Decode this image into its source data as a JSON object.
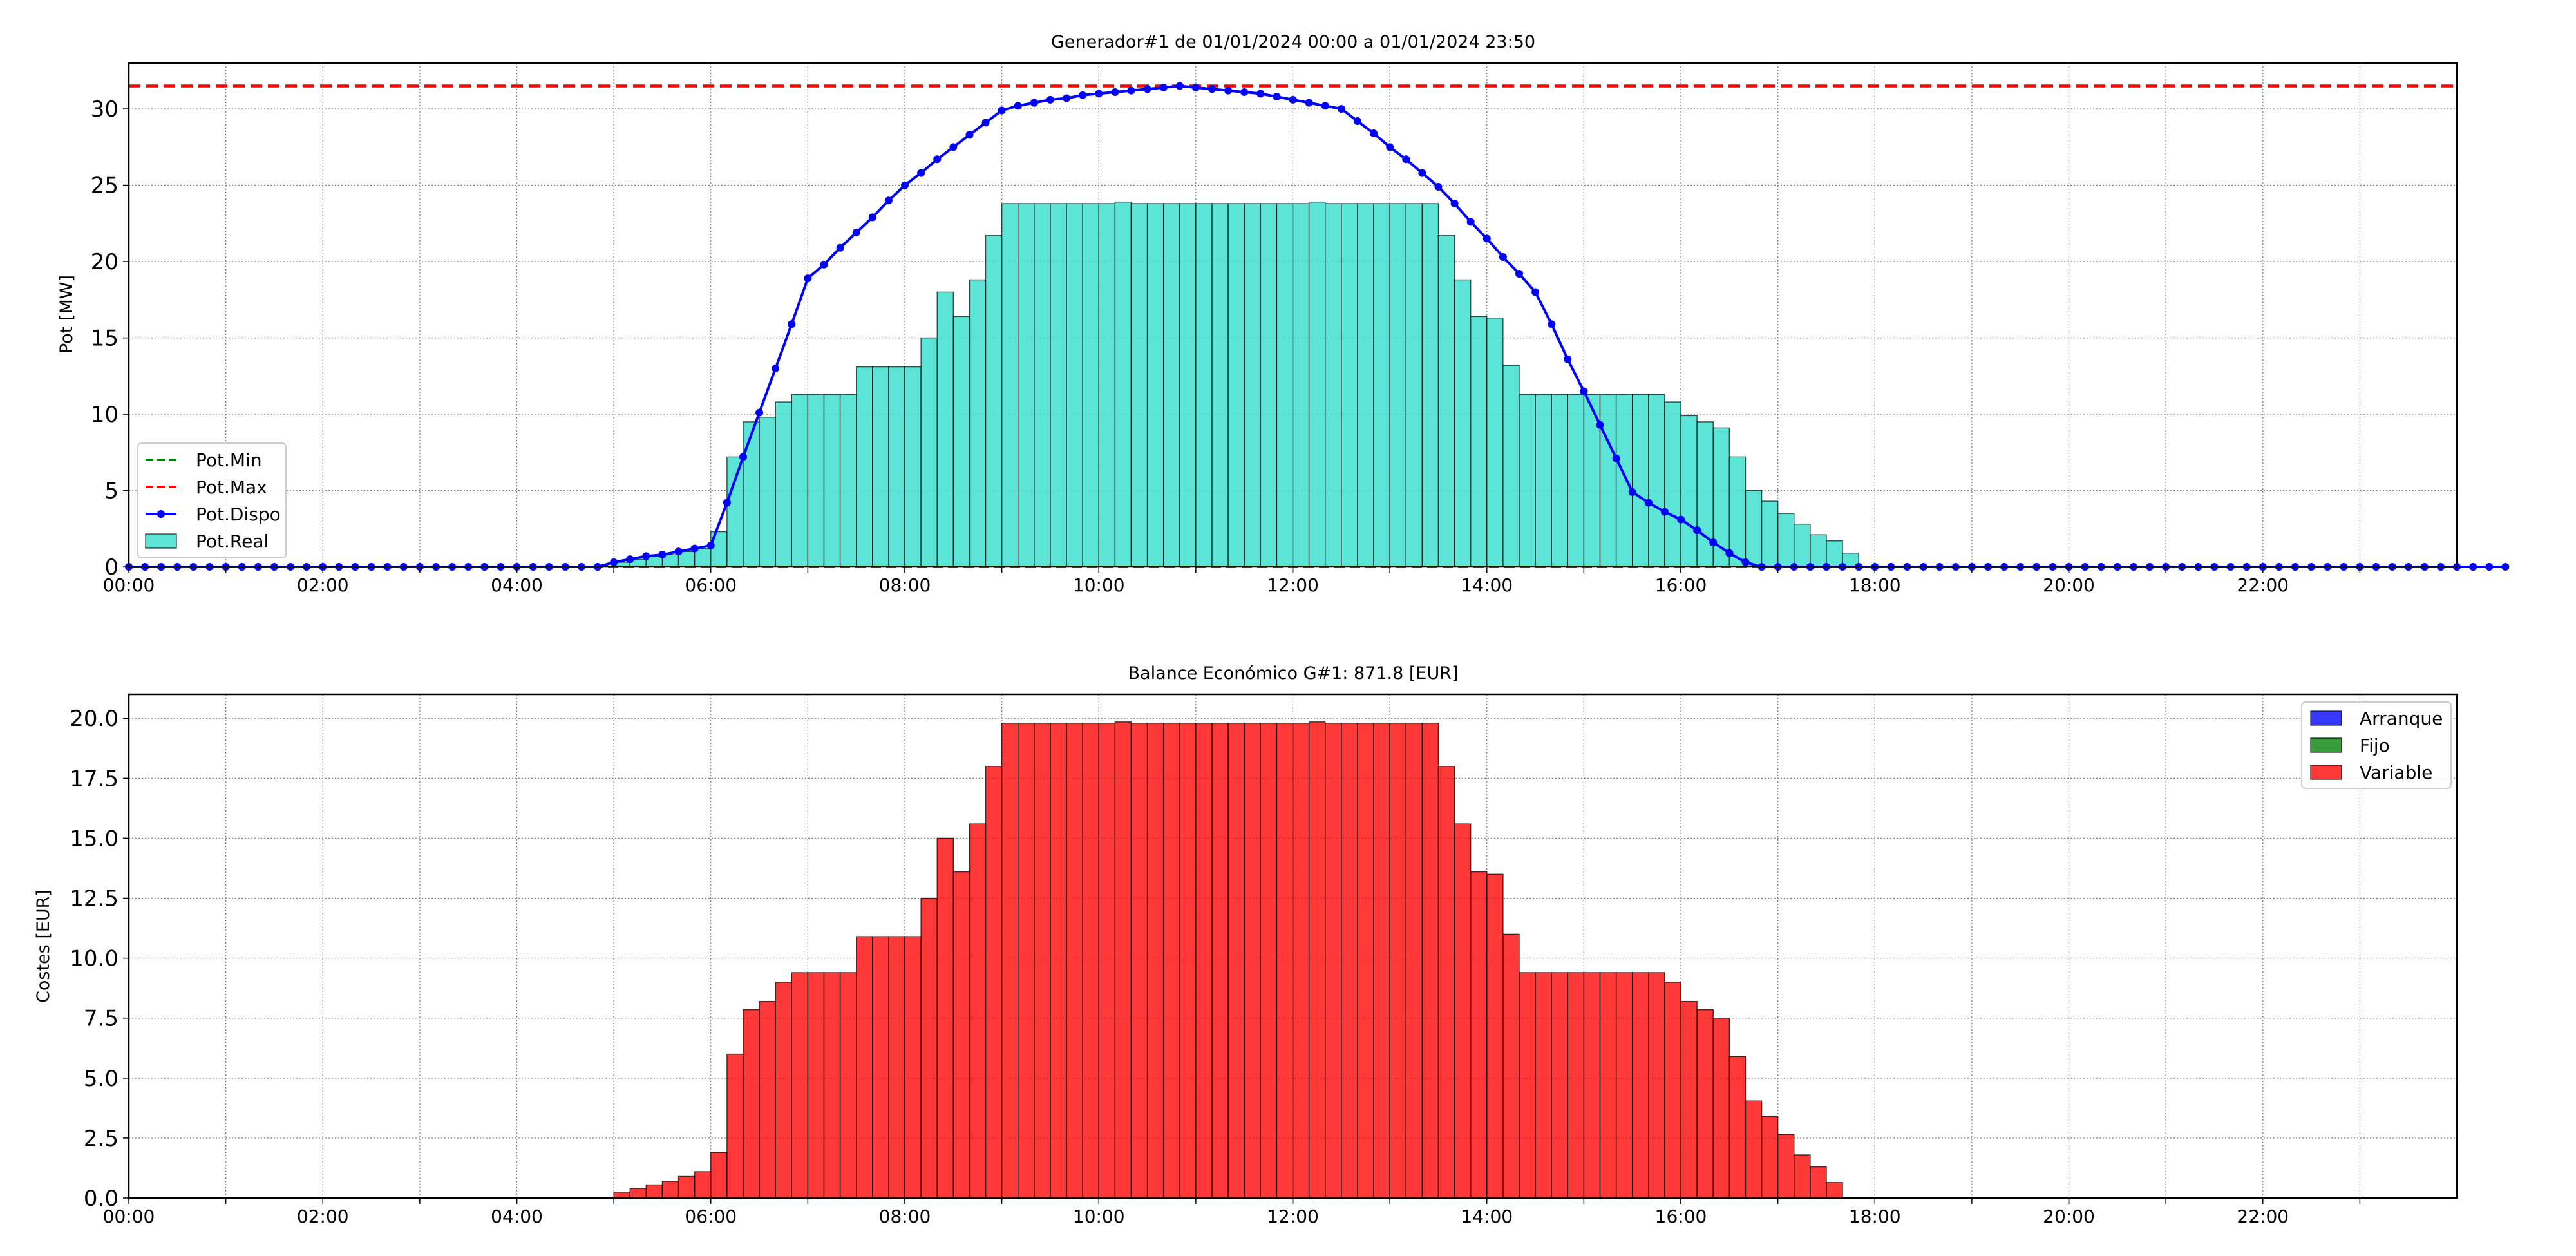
{
  "colors": {
    "pot_min": "#008000",
    "pot_max": "#ff0000",
    "pot_dispo": "#0000ff",
    "pot_real_fill": "#40e0d0",
    "arranque": "#0000ff",
    "fijo": "#008000",
    "variable": "#ff0000",
    "edge": "#000000",
    "grid": "#808080"
  },
  "chart_data": [
    {
      "type": "bar",
      "title": "Generador#1 de 01/01/2024 00:00 a 01/01/2024 23:50",
      "xlabel": "",
      "ylabel": "Pot [MW]",
      "xlim": [
        0,
        24
      ],
      "ylim": [
        0,
        33
      ],
      "x_ticks": [
        "00:00",
        "02:00",
        "04:00",
        "06:00",
        "08:00",
        "10:00",
        "12:00",
        "14:00",
        "16:00",
        "18:00",
        "20:00",
        "22:00"
      ],
      "y_ticks": [
        "0",
        "5",
        "10",
        "15",
        "20",
        "25",
        "30"
      ],
      "grid": true,
      "legend_position": "lower-left",
      "interval_hours": 0.16667,
      "series": [
        {
          "name": "Pot.Min",
          "type": "hline",
          "style": "dashed",
          "value": 0
        },
        {
          "name": "Pot.Max",
          "type": "hline",
          "style": "dashed",
          "value": 31.5
        },
        {
          "name": "Pot.Dispo",
          "type": "line",
          "marker": "circle",
          "values": [
            0,
            0,
            0,
            0,
            0,
            0,
            0,
            0,
            0,
            0,
            0,
            0,
            0,
            0,
            0,
            0,
            0,
            0,
            0,
            0,
            0,
            0,
            0,
            0,
            0,
            0,
            0,
            0,
            0,
            0,
            0.3,
            0.5,
            0.7,
            0.8,
            1.0,
            1.2,
            1.4,
            4.2,
            7.2,
            10.1,
            13.0,
            15.9,
            18.9,
            19.8,
            20.9,
            21.9,
            22.9,
            24.0,
            25.0,
            25.8,
            26.7,
            27.5,
            28.3,
            29.1,
            29.9,
            30.2,
            30.4,
            30.6,
            30.7,
            30.9,
            31.0,
            31.1,
            31.2,
            31.3,
            31.4,
            31.5,
            31.4,
            31.3,
            31.2,
            31.1,
            31.0,
            30.8,
            30.6,
            30.4,
            30.2,
            30.0,
            29.2,
            28.4,
            27.5,
            26.7,
            25.8,
            24.9,
            23.8,
            22.6,
            21.5,
            20.3,
            19.2,
            18.0,
            15.9,
            13.6,
            11.5,
            9.3,
            7.1,
            4.9,
            4.2,
            3.6,
            3.1,
            2.4,
            1.6,
            0.9,
            0.3,
            0,
            0,
            0,
            0,
            0,
            0,
            0,
            0,
            0,
            0,
            0,
            0,
            0,
            0,
            0,
            0,
            0,
            0,
            0,
            0,
            0,
            0,
            0,
            0,
            0,
            0,
            0,
            0,
            0,
            0,
            0,
            0,
            0,
            0,
            0,
            0,
            0,
            0,
            0,
            0,
            0,
            0,
            0,
            0,
            0,
            0,
            0
          ]
        },
        {
          "name": "Pot.Real",
          "type": "bar",
          "values": [
            0,
            0,
            0,
            0,
            0,
            0,
            0,
            0,
            0,
            0,
            0,
            0,
            0,
            0,
            0,
            0,
            0,
            0,
            0,
            0,
            0,
            0,
            0,
            0,
            0,
            0,
            0,
            0,
            0,
            0,
            0.3,
            0.5,
            0.7,
            0.8,
            1.0,
            1.2,
            2.3,
            7.2,
            9.5,
            9.8,
            10.8,
            11.3,
            11.3,
            11.3,
            11.3,
            13.1,
            13.1,
            13.1,
            13.1,
            15.0,
            18.0,
            16.4,
            18.8,
            21.7,
            23.8,
            23.8,
            23.8,
            23.8,
            23.8,
            23.8,
            23.8,
            23.9,
            23.8,
            23.8,
            23.8,
            23.8,
            23.8,
            23.8,
            23.8,
            23.8,
            23.8,
            23.8,
            23.8,
            23.9,
            23.8,
            23.8,
            23.8,
            23.8,
            23.8,
            23.8,
            23.8,
            21.7,
            18.8,
            16.4,
            16.3,
            13.2,
            11.3,
            11.3,
            11.3,
            11.3,
            11.3,
            11.3,
            11.3,
            11.3,
            11.3,
            10.8,
            9.9,
            9.5,
            9.1,
            7.2,
            5.0,
            4.3,
            3.5,
            2.8,
            2.1,
            1.7,
            0.9,
            0,
            0,
            0,
            0,
            0,
            0,
            0,
            0,
            0,
            0,
            0,
            0,
            0,
            0,
            0,
            0,
            0,
            0,
            0,
            0,
            0,
            0,
            0,
            0,
            0,
            0,
            0,
            0,
            0,
            0,
            0,
            0,
            0,
            0,
            0,
            0,
            0,
            0,
            0,
            0,
            0,
            0,
            0,
            0,
            0
          ]
        }
      ]
    },
    {
      "type": "bar",
      "title": "Balance Económico G#1: 871.8 [EUR]",
      "xlabel": "",
      "ylabel": "Costes [EUR]",
      "xlim": [
        0,
        24
      ],
      "ylim": [
        0,
        21
      ],
      "x_ticks": [
        "00:00",
        "02:00",
        "04:00",
        "06:00",
        "08:00",
        "10:00",
        "12:00",
        "14:00",
        "16:00",
        "18:00",
        "20:00",
        "22:00"
      ],
      "y_ticks": [
        "0.0",
        "2.5",
        "5.0",
        "7.5",
        "10.0",
        "12.5",
        "15.0",
        "17.5",
        "20.0"
      ],
      "grid": true,
      "legend_position": "upper-right",
      "stacked": true,
      "interval_hours": 0.16667,
      "series": [
        {
          "name": "Arranque",
          "values": [
            0,
            0,
            0,
            0,
            0,
            0,
            0,
            0,
            0,
            0,
            0,
            0,
            0,
            0,
            0,
            0,
            0,
            0,
            0,
            0,
            0,
            0,
            0,
            0,
            0,
            0,
            0,
            0,
            0,
            0,
            0,
            0,
            0,
            0,
            0,
            0,
            0,
            0,
            0,
            0,
            0,
            0,
            0,
            0,
            0,
            0,
            0,
            0,
            0,
            0,
            0,
            0,
            0,
            0,
            0,
            0,
            0,
            0,
            0,
            0,
            0,
            0,
            0,
            0,
            0,
            0,
            0,
            0,
            0,
            0,
            0,
            0,
            0,
            0,
            0,
            0,
            0,
            0,
            0,
            0,
            0,
            0,
            0,
            0,
            0,
            0,
            0,
            0,
            0,
            0,
            0,
            0,
            0,
            0,
            0,
            0,
            0,
            0,
            0,
            0,
            0,
            0,
            0,
            0,
            0,
            0,
            0,
            0,
            0,
            0,
            0,
            0,
            0,
            0,
            0,
            0,
            0,
            0,
            0,
            0,
            0,
            0,
            0,
            0,
            0,
            0,
            0,
            0,
            0,
            0,
            0,
            0,
            0,
            0,
            0,
            0,
            0,
            0,
            0,
            0,
            0,
            0,
            0,
            0
          ]
        },
        {
          "name": "Fijo",
          "values": [
            0,
            0,
            0,
            0,
            0,
            0,
            0,
            0,
            0,
            0,
            0,
            0,
            0,
            0,
            0,
            0,
            0,
            0,
            0,
            0,
            0,
            0,
            0,
            0,
            0,
            0,
            0,
            0,
            0,
            0,
            0,
            0,
            0,
            0,
            0,
            0,
            0,
            0,
            0,
            0,
            0,
            0,
            0,
            0,
            0,
            0,
            0,
            0,
            0,
            0,
            0,
            0,
            0,
            0,
            0,
            0,
            0,
            0,
            0,
            0,
            0,
            0,
            0,
            0,
            0,
            0,
            0,
            0,
            0,
            0,
            0,
            0,
            0,
            0,
            0,
            0,
            0,
            0,
            0,
            0,
            0,
            0,
            0,
            0,
            0,
            0,
            0,
            0,
            0,
            0,
            0,
            0,
            0,
            0,
            0,
            0,
            0,
            0,
            0,
            0,
            0,
            0,
            0,
            0,
            0,
            0,
            0,
            0,
            0,
            0,
            0,
            0,
            0,
            0,
            0,
            0,
            0,
            0,
            0,
            0,
            0,
            0,
            0,
            0,
            0,
            0,
            0,
            0,
            0,
            0,
            0,
            0,
            0,
            0,
            0,
            0,
            0,
            0,
            0,
            0,
            0,
            0,
            0,
            0
          ]
        },
        {
          "name": "Variable",
          "values": [
            0,
            0,
            0,
            0,
            0,
            0,
            0,
            0,
            0,
            0,
            0,
            0,
            0,
            0,
            0,
            0,
            0,
            0,
            0,
            0,
            0,
            0,
            0,
            0,
            0,
            0,
            0,
            0,
            0,
            0,
            0.25,
            0.4,
            0.55,
            0.7,
            0.9,
            1.1,
            1.9,
            6.0,
            7.85,
            8.2,
            9.0,
            9.4,
            9.4,
            9.4,
            9.4,
            10.9,
            10.9,
            10.9,
            10.9,
            12.5,
            15.0,
            13.6,
            15.6,
            18.0,
            19.8,
            19.8,
            19.8,
            19.8,
            19.8,
            19.8,
            19.8,
            19.85,
            19.8,
            19.8,
            19.8,
            19.8,
            19.8,
            19.8,
            19.8,
            19.8,
            19.8,
            19.8,
            19.8,
            19.85,
            19.8,
            19.8,
            19.8,
            19.8,
            19.8,
            19.8,
            19.8,
            18.0,
            15.6,
            13.6,
            13.5,
            11.0,
            9.4,
            9.4,
            9.4,
            9.4,
            9.4,
            9.4,
            9.4,
            9.4,
            9.4,
            9.0,
            8.2,
            7.85,
            7.5,
            5.9,
            4.05,
            3.4,
            2.65,
            1.8,
            1.3,
            0.65,
            0,
            0,
            0,
            0,
            0,
            0,
            0,
            0,
            0,
            0,
            0,
            0,
            0,
            0,
            0,
            0,
            0,
            0,
            0,
            0,
            0,
            0,
            0,
            0,
            0,
            0,
            0,
            0,
            0,
            0,
            0,
            0,
            0,
            0,
            0,
            0,
            0,
            0,
            0,
            0,
            0,
            0,
            0,
            0,
            0,
            0,
            0
          ]
        }
      ]
    }
  ]
}
